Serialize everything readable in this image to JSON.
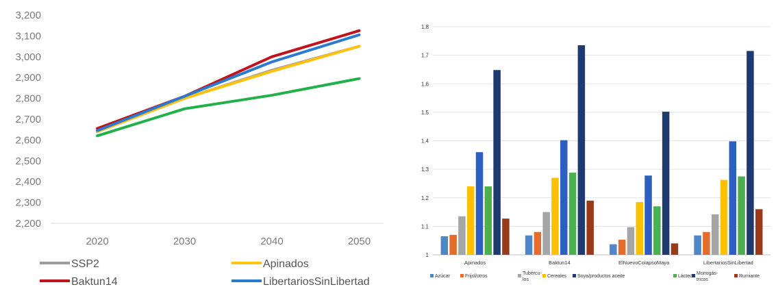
{
  "chart_data": [
    {
      "type": "line",
      "title": "",
      "xlabel": "",
      "ylabel": "",
      "x": [
        "2020",
        "2030",
        "2040",
        "2050"
      ],
      "ylim": [
        2200,
        3200
      ],
      "yticks": [
        "2,200",
        "2,300",
        "2,400",
        "2,500",
        "2,600",
        "2,700",
        "2,800",
        "2,900",
        "3,000",
        "3,100",
        "3,200"
      ],
      "grid": false,
      "legend": "bottom",
      "series": [
        {
          "name": "SSP2",
          "color": "#9e9e9e",
          "values": [
            2640,
            2800,
            2935,
            3050
          ]
        },
        {
          "name": "Apinados",
          "color": "#ffc20e",
          "values": [
            2640,
            2800,
            2930,
            3050
          ]
        },
        {
          "name": "Baktun14",
          "color": "#c0141c",
          "values": [
            2655,
            2810,
            3000,
            3125
          ]
        },
        {
          "name": "LibertariosSinLibertad",
          "color": "#2a7bd0",
          "values": [
            2645,
            2810,
            2975,
            3105
          ]
        },
        {
          "name": "",
          "color": "#22b04b",
          "values": [
            2620,
            2750,
            2815,
            2895
          ]
        }
      ]
    },
    {
      "type": "bar",
      "title": "",
      "xlabel": "",
      "ylabel": "",
      "categories": [
        "Apinados",
        "Baktun14",
        "ElNuevoColapsoMaya",
        "LibertariosSinLibertad"
      ],
      "ylim": [
        1,
        1.8
      ],
      "yticks": [
        "1",
        "1.1",
        "1.2",
        "1.3",
        "1.4",
        "1.5",
        "1.6",
        "1.7",
        "1.8"
      ],
      "grid": true,
      "legend": "bottom",
      "series": [
        {
          "name": "Azúcar",
          "color": "#4f86c6",
          "values": [
            1.065,
            1.068,
            1.037,
            1.068
          ]
        },
        {
          "name": "Frijol/otros",
          "color": "#e46c2c",
          "values": [
            1.07,
            1.08,
            1.053,
            1.08
          ]
        },
        {
          "name": "Tubércu-los",
          "color": "#a5a5a5",
          "values": [
            1.135,
            1.15,
            1.097,
            1.142
          ]
        },
        {
          "name": "Cereales",
          "color": "#ffc000",
          "values": [
            1.24,
            1.27,
            1.185,
            1.263
          ]
        },
        {
          "name": "",
          "color": "#2e5fc0",
          "values": [
            1.36,
            1.402,
            1.278,
            1.398
          ]
        },
        {
          "name": "",
          "color": "#4caf50",
          "values": [
            1.24,
            1.288,
            1.17,
            1.275
          ]
        },
        {
          "name": "Soya/productos aceite",
          "color": "#1f3a6e",
          "values": [
            1.648,
            1.735,
            1.502,
            1.715
          ]
        },
        {
          "name": "Lácteo",
          "color": "#9b3a1a",
          "values": [
            1.127,
            1.19,
            1.04,
            1.16
          ]
        }
      ],
      "legend_labels": [
        "Azúcar",
        "Frijol/otros",
        "Tubércu-",
        "los",
        "Cereales",
        "Soya/productos aceite",
        "Lácteo",
        "Monogás-",
        "tricos",
        "Rumiante"
      ]
    }
  ]
}
